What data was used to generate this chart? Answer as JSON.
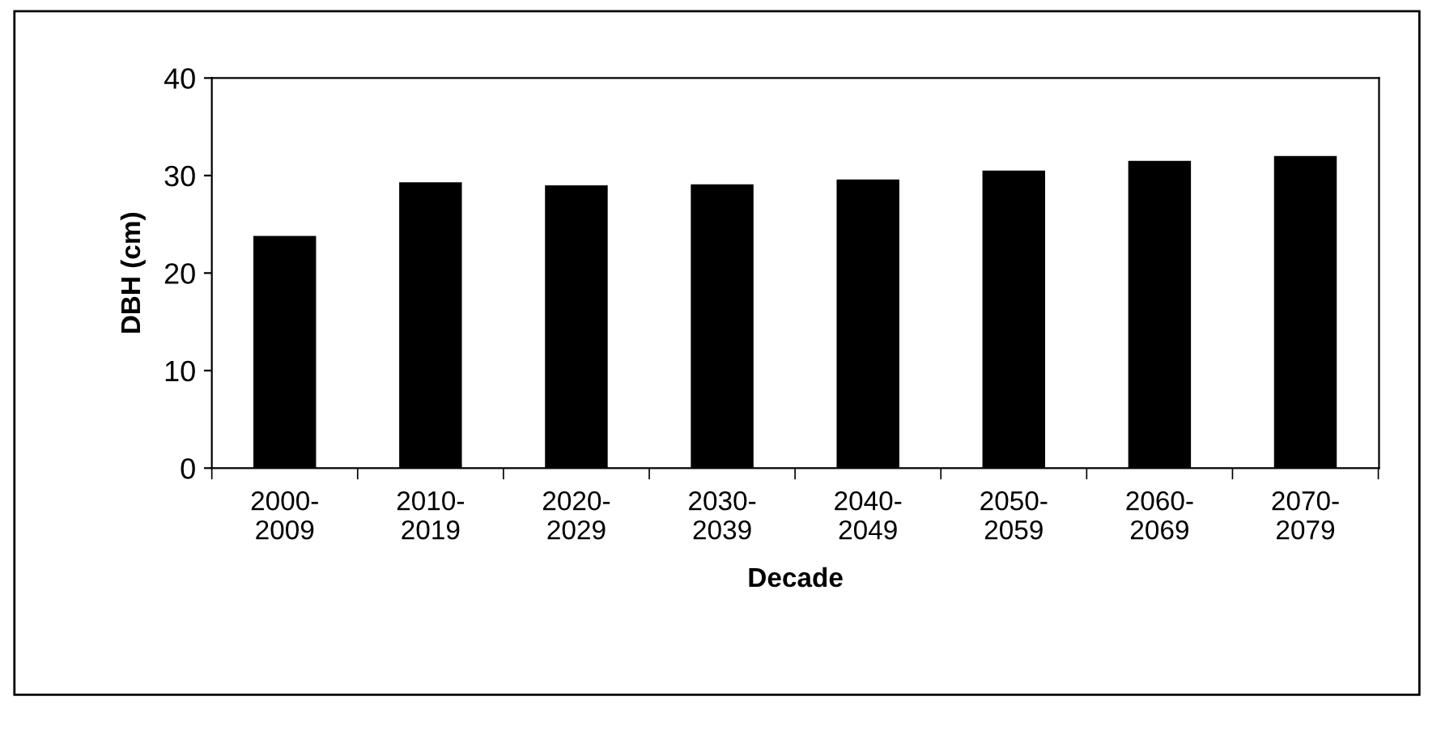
{
  "chart_data": {
    "type": "bar",
    "categories": [
      "2000-\n2009",
      "2010-\n2019",
      "2020-\n2029",
      "2030-\n2039",
      "2040-\n2049",
      "2050-\n2059",
      "2060-\n2069",
      "2070-\n2079"
    ],
    "values": [
      23.8,
      29.3,
      29.0,
      29.1,
      29.6,
      30.5,
      31.5,
      32.0
    ],
    "color": "#000000",
    "xlabel": "Decade",
    "ylabel": "DBH (cm)",
    "ylim": [
      0,
      40
    ],
    "yticks": [
      0,
      10,
      20,
      30,
      40
    ],
    "grid": false,
    "legend": false
  }
}
